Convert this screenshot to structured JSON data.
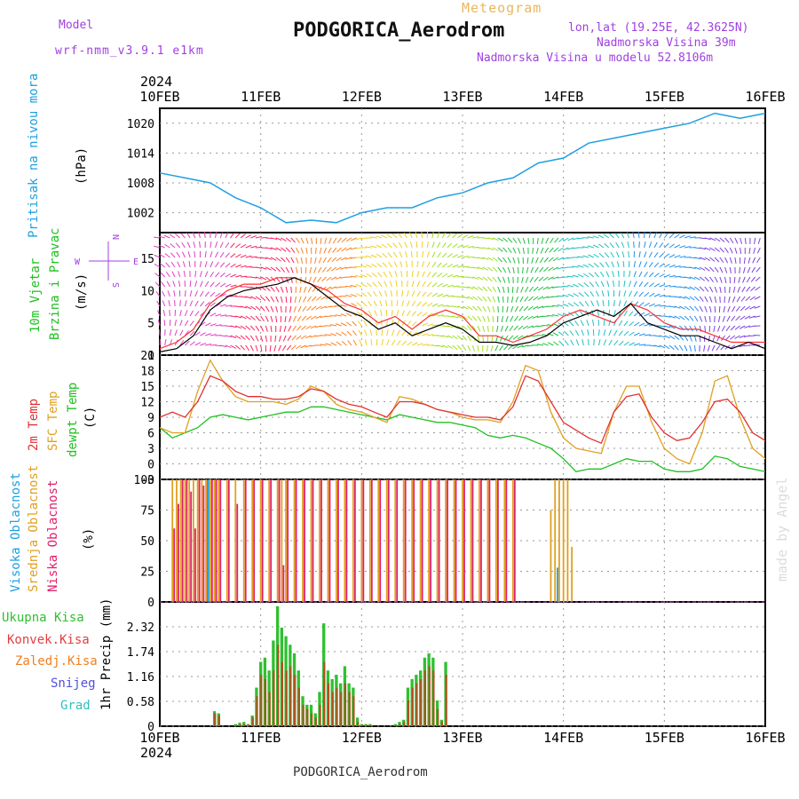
{
  "header": {
    "model_label": "Model",
    "model_name": "wrf-nmm_v3.9.1 e1km",
    "meteogram": "Meteogram",
    "station": "PODGORICA_Aerodrom",
    "lonlat": "lon,lat (19.25E, 42.3625N)",
    "altitude": "Nadmorska Visina 39m",
    "model_altitude": "Nadmorska Visina u modelu 52.8106m",
    "watermark": "made by Angel",
    "footer": "PODGORICA_Aerodrom"
  },
  "time_axis": {
    "year": "2024",
    "labels": [
      "10FEB",
      "11FEB",
      "12FEB",
      "13FEB",
      "14FEB",
      "15FEB",
      "16FEB"
    ]
  },
  "colors": {
    "pressure": "#1fa0e0",
    "temp2m": "#e03030",
    "sfctemp": "#e0a020",
    "dewpt": "#20c020",
    "high_cloud": "#1fa0e0",
    "mid_cloud": "#e0a020",
    "low_cloud": "#e0206a",
    "total_precip": "#30c030",
    "conv_precip": "#e04040",
    "frozen_precip": "#f08020",
    "snow": "#5050e0",
    "graupel": "#30c0c0"
  },
  "panels": {
    "pressure": {
      "label1": "Pritisak na nivou mora",
      "unit": "(hPa)",
      "ticks": [
        "1020",
        "1014",
        "1008",
        "1002"
      ]
    },
    "wind": {
      "label1": "10m Vjetar",
      "label2": "Brzina i Pravac",
      "unit": "(m/s)",
      "ticks": [
        "15",
        "10",
        "5",
        "0"
      ],
      "compass_w": "W",
      "compass_e": "E",
      "compass_n": "N",
      "compass_s": "S"
    },
    "temp": {
      "label1": "2m Temp",
      "label2": "SFC Temp",
      "label3": "dewpt Temp",
      "unit": "(C)",
      "ticks": [
        "21",
        "18",
        "15",
        "12",
        "9",
        "6",
        "3",
        "0",
        "-3"
      ]
    },
    "cloud": {
      "label1": "Visoka Oblacnost",
      "label2": "Srednja Oblacnost",
      "label3": "Niska Oblacnost",
      "unit": "(%)",
      "ticks": [
        "100",
        "75",
        "50",
        "25",
        "0"
      ]
    },
    "precip": {
      "legend": [
        "Ukupna Kisa",
        "Konvek.Kisa",
        "Zaledj.Kisa",
        "Snijeg",
        "Grad"
      ],
      "unit": "1hr Precip (mm)",
      "ticks": [
        "2.32",
        "1.74",
        "1.16",
        "0.58",
        "0"
      ]
    }
  },
  "chart_data": [
    {
      "type": "line",
      "name": "pressure",
      "ylabel": "(hPa)",
      "ylim": [
        998,
        1023
      ],
      "x_hours": [
        0,
        6,
        12,
        18,
        24,
        30,
        36,
        42,
        48,
        54,
        60,
        66,
        72,
        78,
        84,
        90,
        96,
        102,
        108,
        114,
        120,
        126,
        132,
        138,
        144
      ],
      "series": [
        {
          "name": "Pritisak na nivou mora",
          "values": [
            1010,
            1009,
            1008,
            1005,
            1003,
            1000,
            1000.5,
            1000,
            1002,
            1003,
            1003,
            1005,
            1006,
            1008,
            1009,
            1012,
            1013,
            1016,
            1017,
            1018,
            1019,
            1020,
            1022,
            1021,
            1022
          ]
        }
      ]
    },
    {
      "type": "line",
      "name": "wind",
      "ylabel": "(m/s)",
      "ylim": [
        0,
        19
      ],
      "x_hours": [
        0,
        4,
        8,
        12,
        16,
        20,
        24,
        28,
        32,
        36,
        40,
        44,
        48,
        52,
        56,
        60,
        64,
        68,
        72,
        76,
        80,
        84,
        88,
        92,
        96,
        100,
        104,
        108,
        112,
        116,
        120,
        124,
        128,
        132,
        136,
        140,
        144
      ],
      "series": [
        {
          "name": "10m Vjetar",
          "values": [
            0.5,
            1,
            3,
            7,
            9,
            10,
            10.5,
            11,
            12,
            11,
            9,
            7,
            6,
            4,
            5,
            3,
            4,
            5,
            4,
            2,
            2,
            1.5,
            2,
            3,
            5,
            6,
            7,
            6,
            8,
            5,
            4,
            3,
            3,
            2,
            1,
            2,
            1
          ]
        },
        {
          "name": "gust",
          "values": [
            1,
            2,
            4,
            8,
            10,
            11,
            11,
            12,
            12,
            11,
            10,
            8,
            7,
            5,
            6,
            4,
            6,
            7,
            6,
            3,
            3,
            2,
            3,
            4,
            6,
            7,
            6,
            5,
            8,
            7,
            5,
            4,
            4,
            3,
            2,
            2,
            2
          ]
        }
      ]
    },
    {
      "type": "line",
      "name": "temperature",
      "ylabel": "(C)",
      "ylim": [
        -3,
        21
      ],
      "x_hours": [
        0,
        3,
        6,
        9,
        12,
        15,
        18,
        21,
        24,
        27,
        30,
        33,
        36,
        39,
        42,
        45,
        48,
        51,
        54,
        57,
        60,
        63,
        66,
        69,
        72,
        75,
        78,
        81,
        84,
        87,
        90,
        93,
        96,
        99,
        102,
        105,
        108,
        111,
        114,
        117,
        120,
        123,
        126,
        129,
        132,
        135,
        138,
        141,
        144
      ],
      "series": [
        {
          "name": "2m Temp",
          "values": [
            9,
            10,
            9,
            12,
            17,
            16,
            14,
            13,
            13,
            12.5,
            12.5,
            13,
            14.5,
            14,
            12.5,
            11.5,
            11,
            10,
            9,
            12,
            12,
            11.5,
            10.5,
            10,
            9.5,
            9,
            9,
            8.5,
            11,
            17,
            16,
            12,
            8,
            6.5,
            5,
            4,
            10,
            13,
            13.5,
            9,
            6,
            4.5,
            5,
            8,
            12,
            12.5,
            10,
            6,
            4.5
          ]
        },
        {
          "name": "SFC Temp",
          "values": [
            7,
            6,
            6,
            14,
            20,
            16,
            13,
            12,
            12,
            12,
            11.5,
            12.5,
            15,
            14,
            11.5,
            10.5,
            10,
            9,
            8,
            13,
            12.5,
            11.5,
            10.5,
            10,
            9,
            8.5,
            8.5,
            8,
            12,
            19,
            18,
            10,
            5,
            3,
            2.5,
            2,
            10,
            15,
            15,
            8,
            3,
            1,
            0,
            6,
            16,
            17,
            9,
            3,
            1
          ]
        },
        {
          "name": "dewpt Temp",
          "values": [
            7,
            5,
            6,
            7,
            9,
            9.5,
            9,
            8.5,
            9,
            9.5,
            10,
            10,
            11,
            11,
            10.5,
            10,
            9.5,
            9,
            8.5,
            9.5,
            9,
            8.5,
            8,
            8,
            7.5,
            7,
            5.5,
            5,
            5.5,
            5,
            4,
            3,
            1,
            -1.5,
            -1,
            -1,
            0,
            1,
            0.5,
            0.5,
            -1,
            -1.5,
            -1.5,
            -1,
            1.5,
            1,
            -0.5,
            -1,
            -1.5
          ]
        }
      ]
    },
    {
      "type": "bar",
      "name": "cloud",
      "ylabel": "(%)",
      "ylim": [
        0,
        100
      ],
      "x_hours": [
        3,
        4,
        5,
        6,
        7,
        8,
        9,
        10,
        11,
        12,
        13,
        14,
        16,
        18,
        20,
        22,
        24,
        26,
        28,
        29,
        30,
        32,
        34,
        36,
        38,
        40,
        42,
        44,
        46,
        48,
        50,
        52,
        54,
        56,
        58,
        60,
        62,
        64,
        66,
        68,
        70,
        72,
        74,
        76,
        78,
        80,
        82,
        84,
        93,
        94,
        95,
        96,
        97,
        98
      ],
      "series": [
        {
          "name": "Srednja Oblacnost",
          "values": [
            100,
            100,
            100,
            100,
            100,
            100,
            100,
            100,
            100,
            100,
            100,
            100,
            100,
            100,
            100,
            100,
            100,
            100,
            100,
            100,
            100,
            100,
            100,
            100,
            100,
            100,
            100,
            100,
            100,
            100,
            100,
            100,
            100,
            100,
            100,
            100,
            100,
            100,
            100,
            100,
            100,
            100,
            100,
            100,
            100,
            100,
            100,
            100,
            75,
            100,
            100,
            100,
            100,
            45
          ]
        },
        {
          "name": "Niska Oblacnost",
          "values": [
            60,
            80,
            100,
            100,
            90,
            60,
            100,
            95,
            100,
            100,
            100,
            100,
            100,
            80,
            100,
            100,
            100,
            100,
            100,
            30,
            100,
            100,
            100,
            100,
            100,
            100,
            100,
            100,
            100,
            100,
            100,
            100,
            100,
            100,
            100,
            100,
            100,
            100,
            100,
            100,
            100,
            100,
            100,
            100,
            100,
            100,
            100,
            100,
            0,
            0,
            0,
            0,
            0,
            0
          ]
        },
        {
          "name": "Visoka Oblacnost",
          "values": [
            0,
            0,
            0,
            0,
            0,
            0,
            0,
            0,
            0,
            100,
            0,
            0,
            0,
            0,
            0,
            0,
            0,
            0,
            0,
            0,
            0,
            0,
            0,
            0,
            0,
            0,
            0,
            0,
            0,
            0,
            0,
            0,
            0,
            0,
            0,
            0,
            0,
            0,
            0,
            0,
            0,
            0,
            0,
            0,
            0,
            0,
            0,
            0,
            0,
            0,
            28,
            0,
            0,
            0
          ]
        }
      ]
    },
    {
      "type": "bar",
      "name": "precip",
      "ylabel": "1hr Precip (mm)",
      "ylim": [
        0,
        2.9
      ],
      "x_hours": [
        13,
        14,
        18,
        19,
        20,
        21,
        22,
        23,
        24,
        25,
        26,
        27,
        28,
        29,
        30,
        31,
        32,
        33,
        34,
        35,
        36,
        37,
        38,
        39,
        40,
        41,
        42,
        43,
        44,
        45,
        46,
        47,
        48,
        49,
        50,
        56,
        57,
        58,
        59,
        60,
        61,
        62,
        63,
        64,
        65,
        66,
        67,
        68
      ],
      "series": [
        {
          "name": "Ukupna Kisa",
          "values": [
            0.35,
            0.3,
            0.05,
            0.08,
            0.1,
            0.05,
            0.25,
            0.9,
            1.5,
            1.6,
            1.3,
            2.0,
            2.8,
            2.3,
            2.1,
            1.9,
            1.7,
            1.3,
            0.7,
            0.5,
            0.5,
            0.3,
            0.8,
            2.4,
            1.3,
            1.1,
            1.2,
            1.0,
            1.4,
            1.0,
            0.9,
            0.2,
            0.05,
            0.05,
            0.05,
            0.05,
            0.1,
            0.15,
            0.9,
            1.1,
            1.2,
            1.3,
            1.6,
            1.7,
            1.6,
            0.6,
            0.15,
            1.5
          ]
        },
        {
          "name": "Konvek.Kisa",
          "values": [
            0.3,
            0.25,
            0.03,
            0.05,
            0.05,
            0.04,
            0.2,
            0.7,
            1.2,
            1.1,
            0.8,
            1.3,
            1.9,
            1.5,
            1.3,
            1.4,
            1.2,
            0.9,
            0.5,
            0.4,
            0.3,
            0.2,
            0.5,
            1.5,
            1.0,
            0.8,
            0.9,
            0.8,
            1.0,
            0.8,
            0.7,
            0.1,
            0.03,
            0.03,
            0.03,
            0.03,
            0.05,
            0.1,
            0.6,
            0.9,
            1.0,
            1.1,
            1.3,
            1.4,
            1.3,
            0.4,
            0.1,
            1.2
          ]
        }
      ]
    }
  ]
}
